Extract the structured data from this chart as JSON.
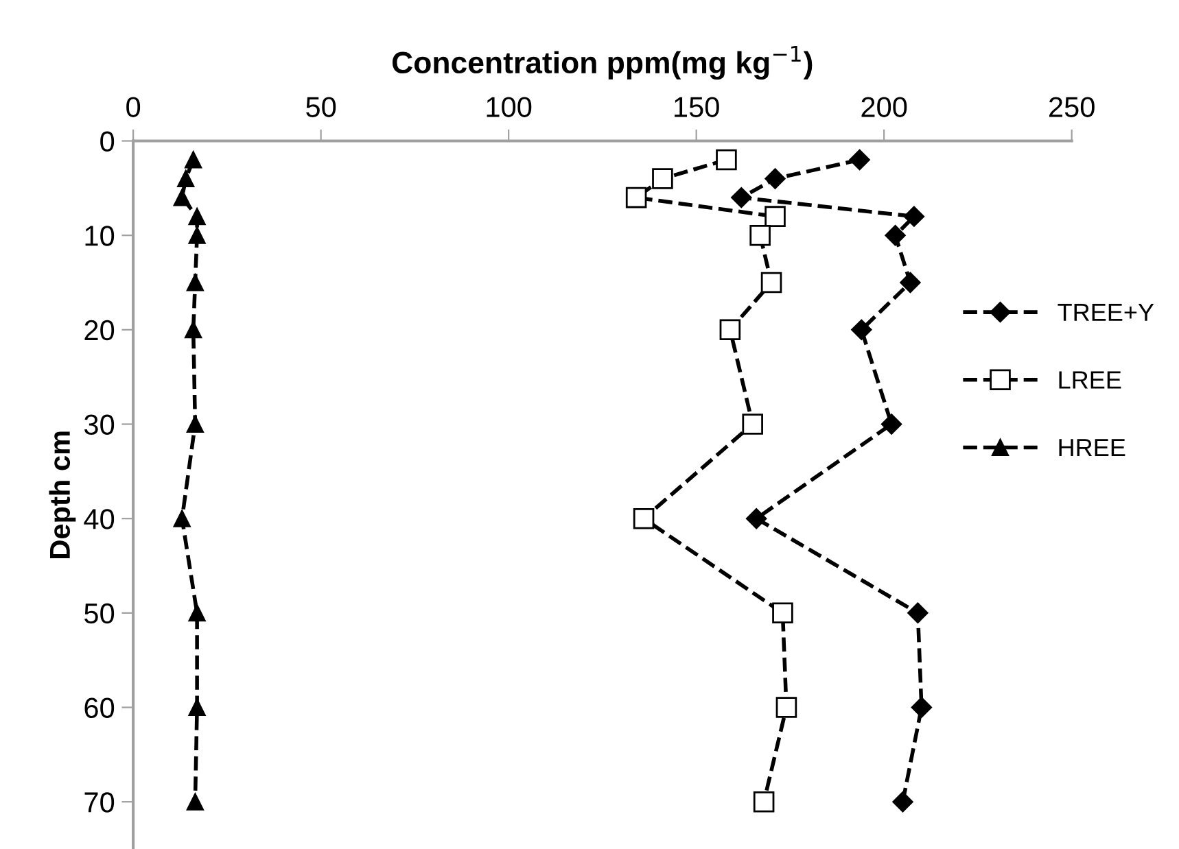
{
  "chart_data": {
    "type": "line",
    "xlabel": "Concentration ppm(mg kg$^{−1}$)",
    "ylabel": "Depth cm",
    "xlim": [
      0,
      250
    ],
    "xticks": [
      0,
      50,
      100,
      150,
      200,
      250
    ],
    "ylim": [
      75,
      0
    ],
    "yticks": [
      0,
      10,
      20,
      30,
      40,
      50,
      60,
      70
    ],
    "grid": false,
    "legend": "right",
    "line_style": "dashed",
    "series": [
      {
        "name": "TREE+Y",
        "color": "#000000",
        "marker": "diamond",
        "x": [
          193.5,
          171,
          162,
          208,
          203,
          207,
          194,
          202,
          166,
          209,
          210,
          205
        ],
        "values": [
          2,
          4,
          6,
          8,
          10,
          15,
          20,
          30,
          40,
          50,
          60,
          70
        ]
      },
      {
        "name": "LREE",
        "color": "#000000",
        "marker": "square",
        "x": [
          158,
          141,
          134,
          171,
          167,
          170,
          159,
          165,
          136,
          173,
          174,
          168
        ],
        "values": [
          2,
          4,
          6,
          8,
          10,
          15,
          20,
          30,
          40,
          50,
          60,
          70
        ]
      },
      {
        "name": "HREE",
        "color": "#000000",
        "marker": "triangle",
        "x": [
          16,
          14,
          13,
          17,
          17,
          16.5,
          16,
          16.5,
          13,
          17,
          17,
          16.5
        ],
        "values": [
          2,
          4,
          6,
          8,
          10,
          15,
          20,
          30,
          40,
          50,
          60,
          70
        ]
      }
    ]
  }
}
